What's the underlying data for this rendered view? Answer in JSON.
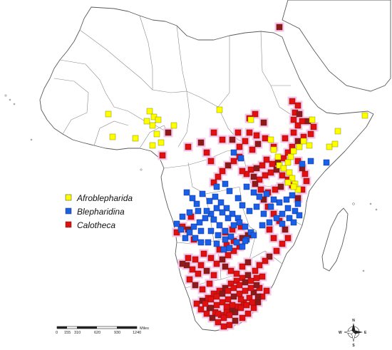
{
  "legend": {
    "items": [
      {
        "label": "Afroblepharida",
        "color": "#ffff00"
      },
      {
        "label": "Blepharidina",
        "color": "#1a5fe6"
      },
      {
        "label": "Calotheca",
        "color": "#e01010"
      }
    ]
  },
  "scale_bar": {
    "ticks": [
      "0",
      "155",
      "310",
      "620",
      "930",
      "1240"
    ],
    "unit": "Miles"
  },
  "compass": {
    "n": "N",
    "s": "S",
    "e": "E",
    "w": "W"
  },
  "colors": {
    "land": "#ffffff",
    "border": "#8a8a8a",
    "outline": "#5a5a5a",
    "afroblepharida": "#ffff00",
    "blepharidina": "#1a5fe6",
    "calotheca": "#e01010",
    "calotheca_dark": "#8b1a1a"
  }
}
